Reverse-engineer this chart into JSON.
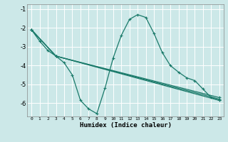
{
  "xlabel": "Humidex (Indice chaleur)",
  "background_color": "#cce8e8",
  "grid_color": "#ffffff",
  "line_color": "#1a7a6a",
  "xlim": [
    -0.5,
    23.5
  ],
  "ylim": [
    -6.7,
    -0.75
  ],
  "xticks": [
    0,
    1,
    2,
    3,
    4,
    5,
    6,
    7,
    8,
    9,
    10,
    11,
    12,
    13,
    14,
    15,
    16,
    17,
    18,
    19,
    20,
    21,
    22,
    23
  ],
  "yticks": [
    -1,
    -2,
    -3,
    -4,
    -5,
    -6
  ],
  "series": [
    {
      "x": [
        0,
        1,
        2,
        3,
        4,
        5,
        6,
        7,
        8,
        9,
        10,
        11,
        12,
        13,
        14,
        15,
        16,
        17,
        18,
        19,
        20,
        21,
        22,
        23
      ],
      "y": [
        -2.1,
        -2.7,
        -3.2,
        -3.5,
        -3.85,
        -4.5,
        -5.85,
        -6.3,
        -6.55,
        -5.2,
        -3.6,
        -2.4,
        -1.55,
        -1.3,
        -1.45,
        -2.3,
        -3.3,
        -4.0,
        -4.35,
        -4.65,
        -4.8,
        -5.25,
        -5.7,
        -5.85
      ]
    },
    {
      "x": [
        0,
        3,
        23
      ],
      "y": [
        -2.1,
        -3.5,
        -5.7
      ]
    },
    {
      "x": [
        0,
        3,
        23
      ],
      "y": [
        -2.1,
        -3.5,
        -5.78
      ]
    },
    {
      "x": [
        0,
        3,
        23
      ],
      "y": [
        -2.1,
        -3.5,
        -5.85
      ]
    }
  ]
}
